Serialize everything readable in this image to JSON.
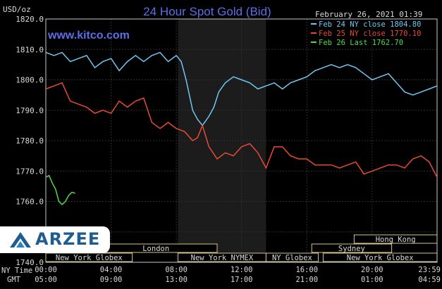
{
  "chart_data": {
    "type": "line",
    "title": "24 Hour Spot Gold (Bid)",
    "ylabel": "USD/oz",
    "ylim": [
      1740,
      1820
    ],
    "yticks": [
      "1820.0",
      "1810.0",
      "1800.0",
      "1790.0",
      "1780.0",
      "1770.0",
      "1760.0",
      "1750.0",
      "1740.0"
    ],
    "watermark": "www.kitco.com",
    "timestamp": "February 26, 2021 01:39",
    "x_ny_labels": [
      "00:00",
      "04:00",
      "08:00",
      "12:00",
      "16:00",
      "20:00",
      "23:59"
    ],
    "x_gmt_labels": [
      "05:00",
      "09:00",
      "13:00",
      "17:00",
      "21:00",
      "01:00",
      "04:59"
    ],
    "x_ny_prefix": "NY Time",
    "x_gmt_prefix": "GMT",
    "x_hours": [
      0,
      4,
      8,
      12,
      16,
      20,
      23.983
    ],
    "series": [
      {
        "name": "Feb 24 NY close 1804.80",
        "color": "#6fc7f0",
        "x": [
          0,
          0.5,
          1,
          1.5,
          2,
          2.5,
          3,
          3.5,
          4,
          4.5,
          5,
          5.5,
          6,
          6.5,
          7,
          7.5,
          8,
          8.3,
          8.6,
          9,
          9.3,
          9.6,
          10,
          10.3,
          10.6,
          11,
          11.5,
          12,
          12.5,
          13,
          13.5,
          14,
          14.5,
          15,
          15.5,
          16,
          16.5,
          17,
          17.5,
          18,
          18.5,
          19,
          19.5,
          20,
          20.5,
          21,
          21.5,
          22,
          22.5,
          23,
          23.5,
          23.98
        ],
        "y": [
          1809,
          1808,
          1809,
          1806,
          1807,
          1808,
          1804,
          1806,
          1807,
          1803,
          1806,
          1808,
          1806,
          1808,
          1809,
          1806,
          1808,
          1806,
          1800,
          1790,
          1787,
          1785,
          1788,
          1791,
          1796,
          1799,
          1801,
          1800,
          1799,
          1797,
          1798,
          1799,
          1797,
          1799,
          1800,
          1801,
          1803,
          1804,
          1805,
          1804,
          1805,
          1804,
          1802,
          1800,
          1801,
          1802,
          1799,
          1796,
          1795,
          1796,
          1797,
          1798
        ]
      },
      {
        "name": "Feb 25 NY close 1770.10",
        "color": "#e84a33",
        "x": [
          0,
          0.5,
          1,
          1.5,
          2,
          2.5,
          3,
          3.5,
          4,
          4.5,
          5,
          5.5,
          6,
          6.5,
          7,
          7.5,
          8,
          8.5,
          9,
          9.3,
          9.6,
          10,
          10.5,
          11,
          11.5,
          12,
          12.5,
          13,
          13.5,
          14,
          14.5,
          15,
          15.5,
          16,
          16.5,
          17,
          17.5,
          18,
          18.5,
          19,
          19.5,
          20,
          20.5,
          21,
          21.5,
          22,
          22.5,
          23,
          23.5,
          23.98
        ],
        "y": [
          1797,
          1798,
          1799,
          1793,
          1792,
          1791,
          1789,
          1790,
          1789,
          1793,
          1791,
          1793,
          1794,
          1786,
          1784,
          1786,
          1784,
          1783,
          1780,
          1781,
          1785,
          1778,
          1774,
          1776,
          1775,
          1778,
          1779,
          1776,
          1771,
          1778,
          1778,
          1775,
          1774,
          1774,
          1772,
          1772,
          1772,
          1771,
          1772,
          1773,
          1769,
          1770,
          1771,
          1772,
          1772,
          1771,
          1774,
          1775,
          1773,
          1768
        ]
      },
      {
        "name": "Feb 26 Last 1762.70",
        "color": "#52d94b",
        "x": [
          0,
          0.2,
          0.4,
          0.6,
          0.8,
          1.0,
          1.2,
          1.4,
          1.6,
          1.8
        ],
        "y": [
          1768,
          1768.5,
          1766,
          1764,
          1760,
          1759,
          1760,
          1762,
          1763,
          1762.7
        ]
      }
    ],
    "sessions": [
      {
        "label": "New York Globex",
        "row": 0,
        "x0": 0,
        "x1": 5.3
      },
      {
        "label": "New York NYMEX",
        "row": 0,
        "x0": 8.1,
        "x1": 13.5
      },
      {
        "label": "NY Globex",
        "row": 0,
        "x0": 13.5,
        "x1": 16.7
      },
      {
        "label": "New York Globex",
        "row": 0,
        "x0": 17.0,
        "x1": 23.98
      },
      {
        "label": "London",
        "row": 1,
        "x0": 3.0,
        "x1": 10.5
      },
      {
        "label": "Sydney",
        "row": 1,
        "x0": 16.3,
        "x1": 21.2
      },
      {
        "label": "Hong Kong",
        "row": 2,
        "x0": 18.9,
        "x1": 23.98
      }
    ],
    "nymex_shade": {
      "x0": 8.1,
      "x1": 13.5
    },
    "grid": true,
    "legend_position": "top-right"
  },
  "logo": {
    "text": "ARZEE"
  }
}
